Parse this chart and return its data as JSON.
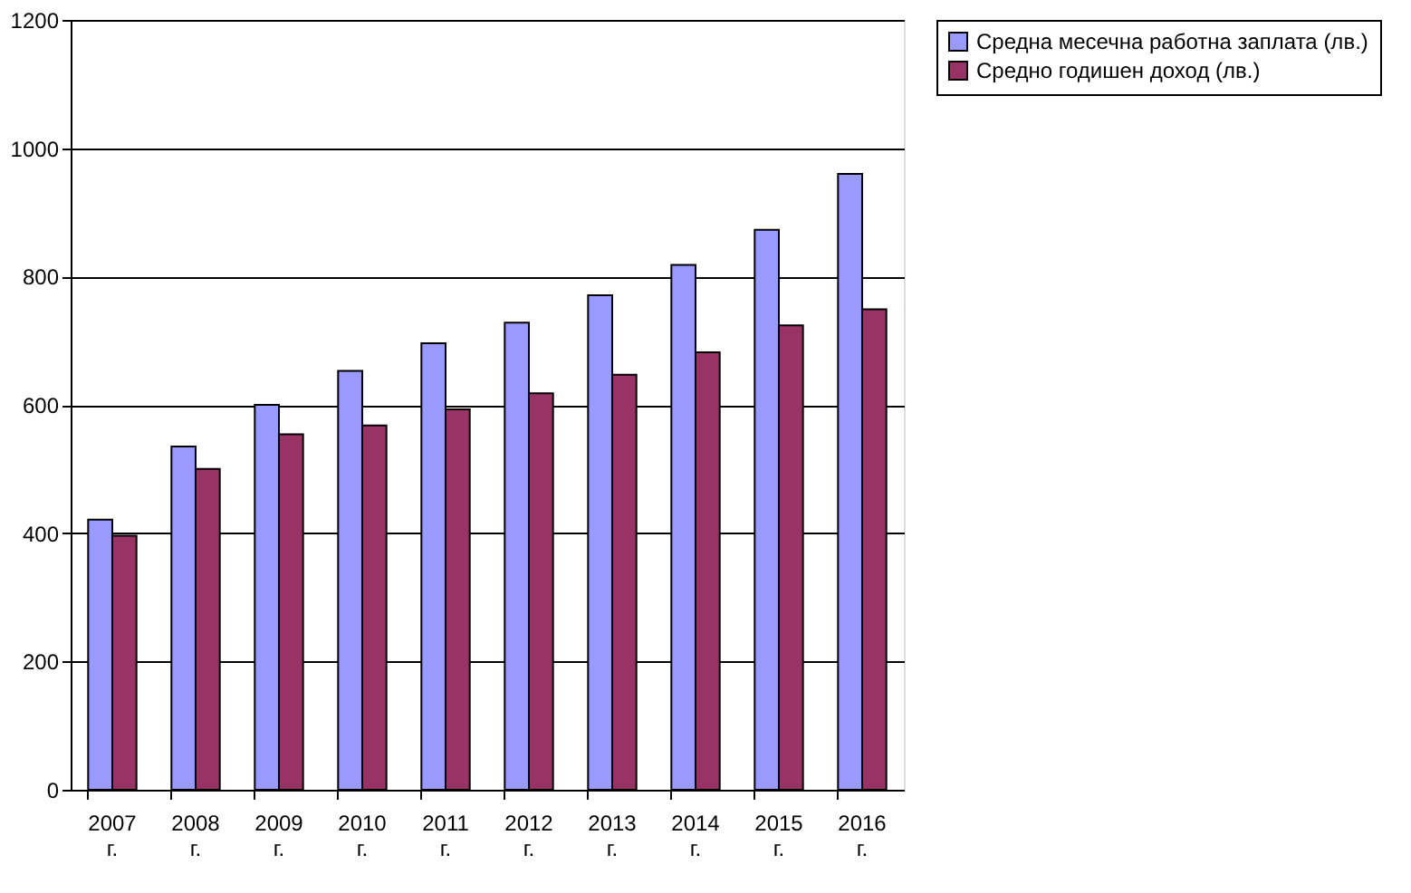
{
  "chart_data": {
    "type": "bar",
    "categories": [
      "2007 г.",
      "2008 г.",
      "2009 г.",
      "2010 г.",
      "2011 г.",
      "2012 г.",
      "2013 г.",
      "2014 г.",
      "2015 г.",
      "2016 г."
    ],
    "series": [
      {
        "name": "Средна месечна работна заплата (лв.)",
        "color": "#9999ff",
        "values": [
          421,
          535,
          600,
          653,
          696,
          728,
          771,
          818,
          873,
          960
        ]
      },
      {
        "name": "Средно годишен доход (лв.)",
        "color": "#993366",
        "values": [
          396,
          500,
          554,
          568,
          593,
          618,
          647,
          682,
          724,
          749
        ]
      }
    ],
    "ylim": [
      0,
      1200
    ],
    "yticks": [
      0,
      200,
      400,
      600,
      800,
      1000,
      1200
    ],
    "grid": "y",
    "legend": "right"
  }
}
